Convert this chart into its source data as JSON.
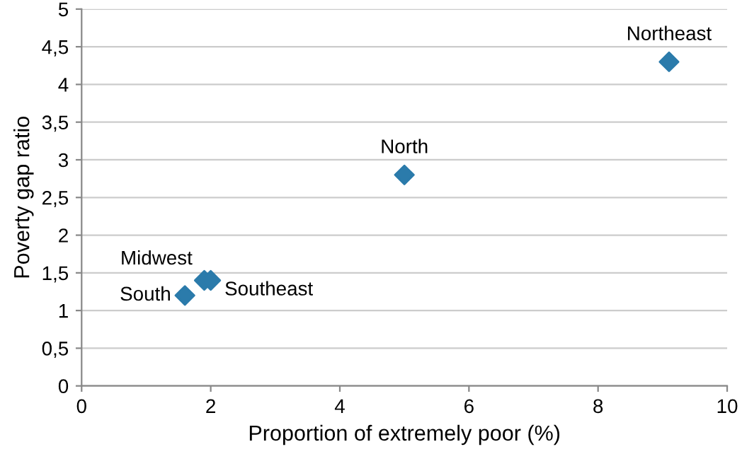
{
  "chart_data": {
    "type": "scatter",
    "xlabel": "Proportion of extremely poor (%)",
    "ylabel": "Poverty gap ratio",
    "x": [
      1.6,
      1.9,
      2.0,
      5.0,
      9.1
    ],
    "series": [
      {
        "color": "#2b7bab",
        "values": [
          1.2,
          1.4,
          1.4,
          2.8,
          4.3
        ]
      }
    ],
    "marker": "diamond",
    "annotations": [
      {
        "text": "South",
        "x": 1.6,
        "y": 1.2
      },
      {
        "text": "Midwest",
        "x": 1.9,
        "y": 1.4
      },
      {
        "text": "Southeast",
        "x": 2.0,
        "y": 1.4
      },
      {
        "text": "North",
        "x": 5.0,
        "y": 2.8
      },
      {
        "text": "Northeast",
        "x": 9.1,
        "y": 4.3
      }
    ],
    "xlim": [
      0,
      10
    ],
    "xticks": [
      0,
      2,
      4,
      6,
      8,
      10
    ],
    "ylim": [
      0,
      5
    ],
    "yticks": [
      0,
      {
        "value": 0.5,
        "label": "0,5"
      },
      1,
      {
        "value": 1.5,
        "label": "1,5"
      },
      2,
      {
        "value": 2.5,
        "label": "2,5"
      },
      3,
      {
        "value": 3.5,
        "label": "3,5"
      },
      4,
      {
        "value": 4.5,
        "label": "4,5"
      },
      5
    ],
    "grid": "y",
    "legend": false
  }
}
